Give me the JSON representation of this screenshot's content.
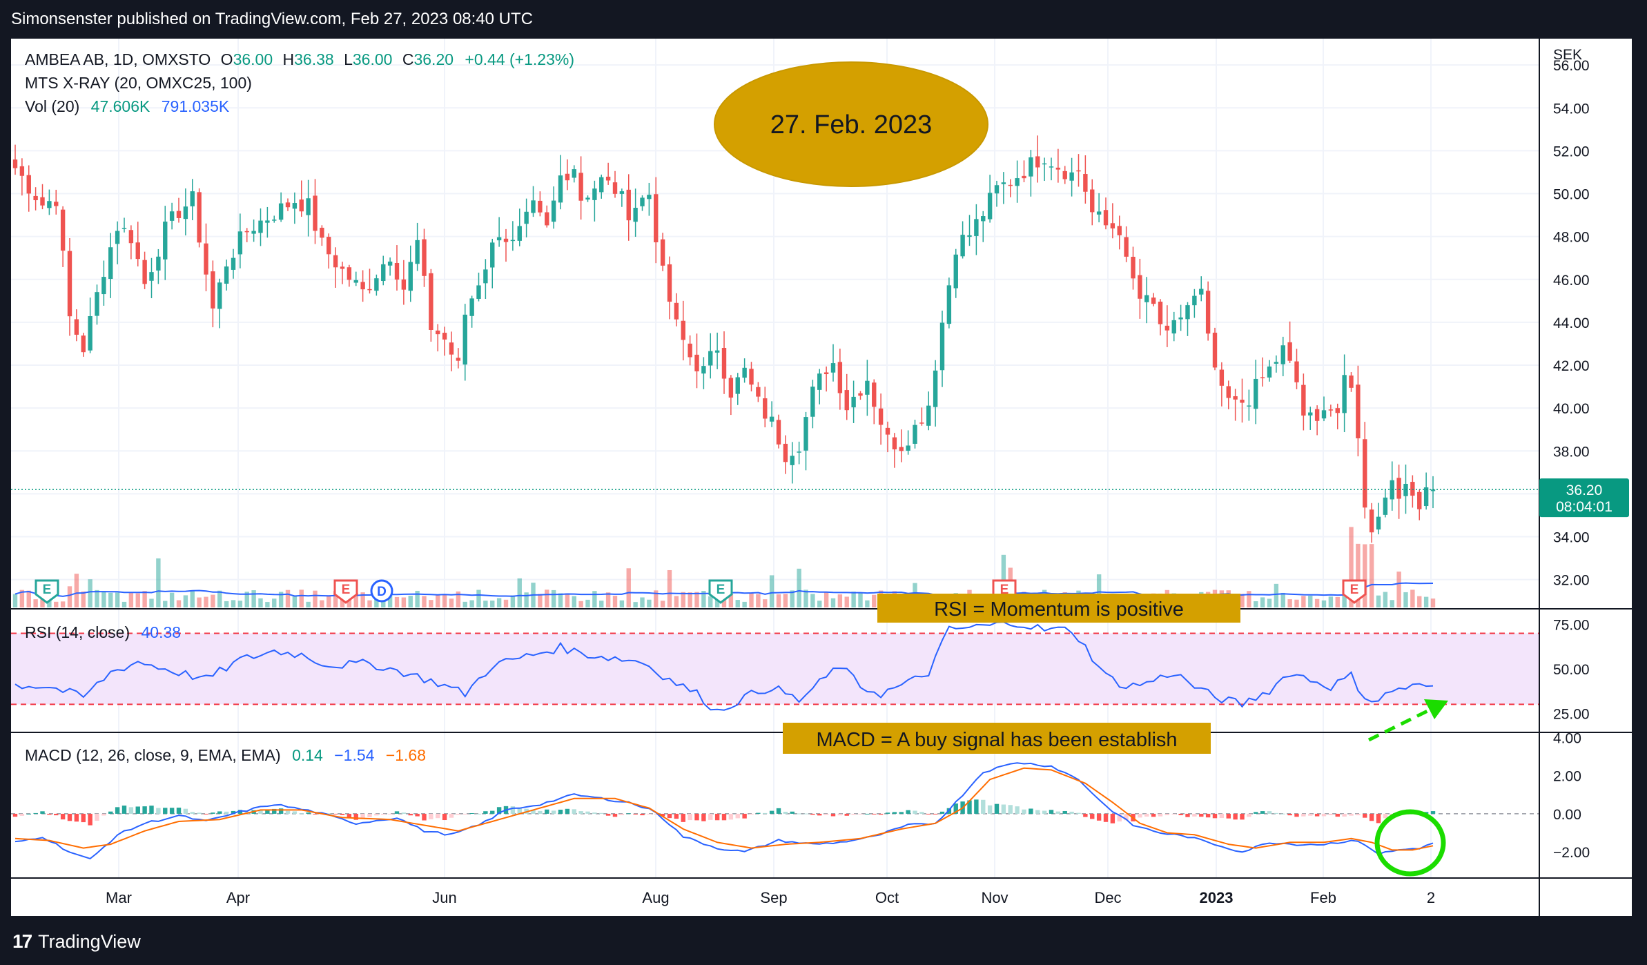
{
  "publisher": "Simonsenster published on TradingView.com, Feb 27, 2023 08:40 UTC",
  "brand": "TradingView",
  "legend": {
    "symbol": "AMBEA AB, 1D, OMXSTO",
    "o_label": "O",
    "o": "36.00",
    "h_label": "H",
    "h": "36.38",
    "l_label": "L",
    "l": "36.00",
    "c_label": "C",
    "c": "36.20",
    "change": "+0.44 (+1.23%)",
    "indicator": "MTS X-RAY (20, OMXC25, 100)",
    "vol_label": "Vol (20)",
    "vol_1": "47.606K",
    "vol_2": "791.035K"
  },
  "annotations": {
    "date_badge": "27. Feb. 2023",
    "rsi_note": "RSI = Momentum is positive",
    "macd_note": "MACD = A buy signal has been establish"
  },
  "colors": {
    "background": "#ffffff",
    "up": "#26a69a",
    "down": "#ef5350",
    "text": "#131722",
    "legend_value": "#089981",
    "vol_ma": "#2962ff",
    "rsi_line": "#2962ff",
    "rsi_band": "#f3e5fb",
    "rsi_bounds": "#f23645",
    "macd_line": "#2962ff",
    "signal_line": "#ff6d00",
    "badge_gold": "#d4a000",
    "note_gold": "#d4a000",
    "circle_green": "#1bdc00",
    "price_tag": "#089981"
  },
  "chart_data": [
    {
      "type": "candlestick",
      "title": "AMBEA AB, 1D, OMXSTO",
      "currency": "SEK",
      "x_ticks": [
        "Mar",
        "Apr",
        "Jun",
        "Aug",
        "Sep",
        "Oct",
        "Nov",
        "Dec",
        "2023",
        "Feb",
        "2"
      ],
      "y_ticks": [
        "56.00",
        "54.00",
        "52.00",
        "50.00",
        "48.00",
        "46.00",
        "44.00",
        "42.00",
        "40.00",
        "38.00",
        "36.00",
        "34.00",
        "32.00"
      ],
      "ylim": [
        30.7,
        57.1
      ],
      "last_price": "36.20",
      "countdown": "08:04:01",
      "close_path": [
        [
          0,
          51.2
        ],
        [
          4,
          49.5
        ],
        [
          6,
          49.8
        ],
        [
          8,
          44.2
        ],
        [
          10,
          42.8
        ],
        [
          13,
          46.5
        ],
        [
          15,
          48.5
        ],
        [
          17,
          48.0
        ],
        [
          19,
          45.8
        ],
        [
          22,
          48.3
        ],
        [
          24,
          49.2
        ],
        [
          26,
          49.7
        ],
        [
          29,
          44.6
        ],
        [
          31,
          46.8
        ],
        [
          34,
          48.3
        ],
        [
          37,
          48.9
        ],
        [
          41,
          49.7
        ],
        [
          43,
          49.4
        ],
        [
          45,
          47.6
        ],
        [
          48,
          46.4
        ],
        [
          51,
          45.4
        ],
        [
          55,
          47.2
        ],
        [
          57,
          45.6
        ],
        [
          59,
          47.7
        ],
        [
          61,
          43.8
        ],
        [
          63,
          43.2
        ],
        [
          65,
          41.9
        ],
        [
          66,
          44.4
        ],
        [
          69,
          46.7
        ],
        [
          71,
          48.3
        ],
        [
          73,
          47.6
        ],
        [
          76,
          49.3
        ],
        [
          78,
          48.3
        ],
        [
          80,
          50.8
        ],
        [
          82,
          51.3
        ],
        [
          83,
          49.8
        ],
        [
          86,
          50.6
        ],
        [
          88,
          50.2
        ],
        [
          90,
          49.2
        ],
        [
          93,
          50.0
        ],
        [
          95,
          46.2
        ],
        [
          97,
          43.8
        ],
        [
          99,
          42.4
        ],
        [
          101,
          41.7
        ],
        [
          103,
          42.9
        ],
        [
          104,
          41.8
        ],
        [
          105,
          40.8
        ],
        [
          107,
          41.7
        ],
        [
          109,
          40.2
        ],
        [
          111,
          39.3
        ],
        [
          113,
          37.9
        ],
        [
          115,
          38.4
        ],
        [
          117,
          40.7
        ],
        [
          119,
          41.9
        ],
        [
          120,
          42.1
        ],
        [
          122,
          40.1
        ],
        [
          125,
          41.4
        ],
        [
          126,
          40.3
        ],
        [
          128,
          38.5
        ],
        [
          130,
          38.3
        ],
        [
          132,
          39.1
        ],
        [
          134,
          40.2
        ],
        [
          136,
          44.0
        ],
        [
          138,
          47.6
        ],
        [
          140,
          48.1
        ],
        [
          142,
          49.1
        ],
        [
          144,
          50.2
        ],
        [
          146,
          50.6
        ],
        [
          148,
          51.1
        ],
        [
          150,
          51.6
        ],
        [
          151,
          51.8
        ],
        [
          153,
          51.3
        ],
        [
          155,
          50.9
        ],
        [
          156,
          51.1
        ],
        [
          157,
          50.2
        ],
        [
          158,
          49.1
        ],
        [
          160,
          48.5
        ],
        [
          162,
          48.4
        ],
        [
          163,
          46.7
        ],
        [
          165,
          45.1
        ],
        [
          167,
          44.7
        ],
        [
          169,
          43.2
        ],
        [
          171,
          44.3
        ],
        [
          172,
          44.8
        ],
        [
          174,
          45.3
        ],
        [
          175,
          43.1
        ],
        [
          177,
          40.6
        ],
        [
          179,
          40.1
        ],
        [
          181,
          40.5
        ],
        [
          184,
          41.8
        ],
        [
          186,
          42.7
        ],
        [
          188,
          41.2
        ],
        [
          189,
          39.7
        ],
        [
          191,
          39.2
        ],
        [
          192,
          40.3
        ],
        [
          194,
          39.8
        ],
        [
          195,
          41.1
        ],
        [
          196,
          40.8
        ],
        [
          197,
          38.9
        ],
        [
          198,
          35.2
        ],
        [
          199,
          34.5
        ],
        [
          200,
          35.2
        ],
        [
          201,
          35.8
        ],
        [
          202,
          36.8
        ],
        [
          203,
          36.2
        ],
        [
          205,
          35.9
        ],
        [
          206,
          35.7
        ],
        [
          207,
          36.4
        ],
        [
          208,
          36.2
        ]
      ]
    },
    {
      "type": "bar",
      "title": "Vol (20)",
      "ylim": [
        0,
        10
      ]
    },
    {
      "type": "line",
      "title": "RSI (14, close)",
      "last_value": "40.38",
      "y_ticks": [
        "75.00",
        "50.00",
        "25.00"
      ],
      "ylim": [
        15,
        83
      ],
      "upper_band": 70,
      "lower_band": 30,
      "values_path": [
        [
          0,
          41
        ],
        [
          5,
          40
        ],
        [
          10,
          34
        ],
        [
          14,
          48
        ],
        [
          18,
          54
        ],
        [
          22,
          50
        ],
        [
          28,
          44
        ],
        [
          33,
          55
        ],
        [
          38,
          60
        ],
        [
          42,
          58
        ],
        [
          46,
          52
        ],
        [
          52,
          53
        ],
        [
          57,
          48
        ],
        [
          62,
          42
        ],
        [
          66,
          36
        ],
        [
          70,
          52
        ],
        [
          75,
          57
        ],
        [
          80,
          62
        ],
        [
          84,
          58
        ],
        [
          88,
          56
        ],
        [
          92,
          54
        ],
        [
          96,
          44
        ],
        [
          100,
          36
        ],
        [
          103,
          26
        ],
        [
          107,
          34
        ],
        [
          111,
          40
        ],
        [
          115,
          32
        ],
        [
          118,
          42
        ],
        [
          121,
          52
        ],
        [
          124,
          40
        ],
        [
          127,
          36
        ],
        [
          131,
          42
        ],
        [
          134,
          48
        ],
        [
          137,
          72
        ],
        [
          142,
          74
        ],
        [
          147,
          76
        ],
        [
          151,
          72
        ],
        [
          155,
          72
        ],
        [
          157,
          62
        ],
        [
          160,
          46
        ],
        [
          163,
          40
        ],
        [
          166,
          42
        ],
        [
          170,
          48
        ],
        [
          173,
          40
        ],
        [
          176,
          34
        ],
        [
          180,
          30
        ],
        [
          184,
          38
        ],
        [
          187,
          48
        ],
        [
          190,
          44
        ],
        [
          193,
          40
        ],
        [
          196,
          46
        ],
        [
          198,
          34
        ],
        [
          200,
          32
        ],
        [
          202,
          38
        ],
        [
          205,
          40
        ],
        [
          208,
          40.4
        ]
      ]
    },
    {
      "type": "line",
      "title": "MACD (12, 26, close, 9, EMA, EMA)",
      "last_values": [
        "0.14",
        "−1.54",
        "−1.68"
      ],
      "y_ticks": [
        "4.00",
        "2.00",
        "0.00",
        "−2.00"
      ],
      "ylim": [
        -3.3,
        4.2
      ],
      "macd_path": [
        [
          0,
          -1.5
        ],
        [
          4,
          -1.2
        ],
        [
          8,
          -2.0
        ],
        [
          11,
          -2.4
        ],
        [
          15,
          -1.1
        ],
        [
          19,
          -0.5
        ],
        [
          24,
          -0.1
        ],
        [
          28,
          -0.4
        ],
        [
          33,
          0.1
        ],
        [
          38,
          0.5
        ],
        [
          44,
          0.1
        ],
        [
          50,
          -0.5
        ],
        [
          56,
          -0.2
        ],
        [
          60,
          -0.9
        ],
        [
          64,
          -1.1
        ],
        [
          68,
          -0.6
        ],
        [
          72,
          0.2
        ],
        [
          77,
          0.5
        ],
        [
          82,
          1.0
        ],
        [
          86,
          0.8
        ],
        [
          90,
          0.6
        ],
        [
          94,
          0.1
        ],
        [
          98,
          -1.2
        ],
        [
          103,
          -1.8
        ],
        [
          107,
          -2.0
        ],
        [
          112,
          -1.4
        ],
        [
          117,
          -1.6
        ],
        [
          121,
          -1.5
        ],
        [
          126,
          -1.2
        ],
        [
          131,
          -0.6
        ],
        [
          135,
          -0.5
        ],
        [
          138,
          0.6
        ],
        [
          142,
          2.2
        ],
        [
          147,
          2.7
        ],
        [
          152,
          2.5
        ],
        [
          156,
          1.8
        ],
        [
          160,
          0.4
        ],
        [
          164,
          -0.6
        ],
        [
          168,
          -1.0
        ],
        [
          172,
          -1.2
        ],
        [
          176,
          -1.6
        ],
        [
          180,
          -2.0
        ],
        [
          184,
          -1.5
        ],
        [
          188,
          -1.6
        ],
        [
          192,
          -1.6
        ],
        [
          196,
          -1.4
        ],
        [
          198,
          -1.6
        ],
        [
          200,
          -2.1
        ],
        [
          203,
          -1.9
        ],
        [
          206,
          -1.8
        ],
        [
          208,
          -1.54
        ]
      ],
      "signal_path": [
        [
          0,
          -1.3
        ],
        [
          5,
          -1.4
        ],
        [
          10,
          -1.8
        ],
        [
          14,
          -1.6
        ],
        [
          19,
          -0.9
        ],
        [
          24,
          -0.4
        ],
        [
          30,
          -0.3
        ],
        [
          36,
          0.2
        ],
        [
          42,
          0.2
        ],
        [
          48,
          -0.2
        ],
        [
          55,
          -0.3
        ],
        [
          60,
          -0.6
        ],
        [
          65,
          -0.9
        ],
        [
          70,
          -0.4
        ],
        [
          76,
          0.2
        ],
        [
          82,
          0.8
        ],
        [
          88,
          0.8
        ],
        [
          93,
          0.3
        ],
        [
          98,
          -0.8
        ],
        [
          103,
          -1.5
        ],
        [
          108,
          -1.8
        ],
        [
          113,
          -1.6
        ],
        [
          118,
          -1.5
        ],
        [
          124,
          -1.3
        ],
        [
          130,
          -0.8
        ],
        [
          135,
          -0.5
        ],
        [
          139,
          0.3
        ],
        [
          143,
          1.8
        ],
        [
          148,
          2.4
        ],
        [
          152,
          2.3
        ],
        [
          157,
          1.6
        ],
        [
          161,
          0.6
        ],
        [
          165,
          -0.5
        ],
        [
          169,
          -1.0
        ],
        [
          173,
          -1.1
        ],
        [
          178,
          -1.6
        ],
        [
          182,
          -1.8
        ],
        [
          187,
          -1.5
        ],
        [
          192,
          -1.5
        ],
        [
          196,
          -1.3
        ],
        [
          199,
          -1.5
        ],
        [
          202,
          -1.9
        ],
        [
          205,
          -1.9
        ],
        [
          208,
          -1.68
        ]
      ]
    }
  ]
}
